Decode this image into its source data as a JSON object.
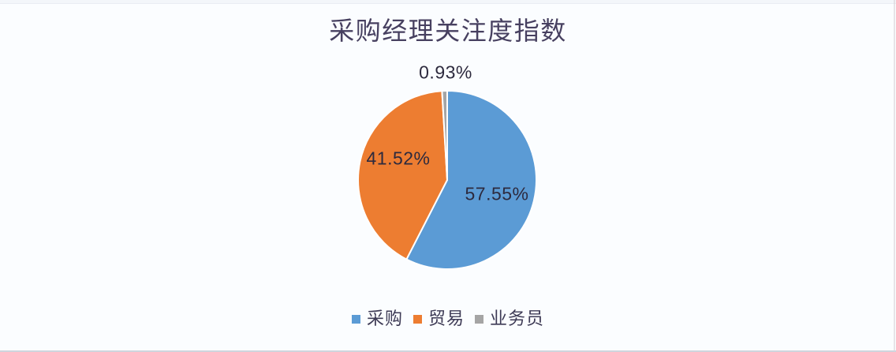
{
  "page": {
    "background": "#fbfdff",
    "top_edge_color": "#f3f6fa",
    "bottom_edge_color": "#cfd4dd",
    "right_edge_color": "#d8d3d8"
  },
  "chart_data": {
    "type": "pie",
    "title": "采购经理关注度指数",
    "categories": [
      "采购",
      "贸易",
      "业务员"
    ],
    "values": [
      57.55,
      41.52,
      0.93
    ],
    "labels": [
      "57.55%",
      "41.52%",
      "0.93%"
    ],
    "colors": [
      "#5B9BD5",
      "#ED7D31",
      "#A5A5A5"
    ],
    "slice_border_color": "#ffffff",
    "legend_position": "bottom",
    "start_angle": "top",
    "direction": "clockwise",
    "title_color": "#474060",
    "label_color": "#2d2a3e",
    "legend_text_color": "#3d3a55"
  }
}
